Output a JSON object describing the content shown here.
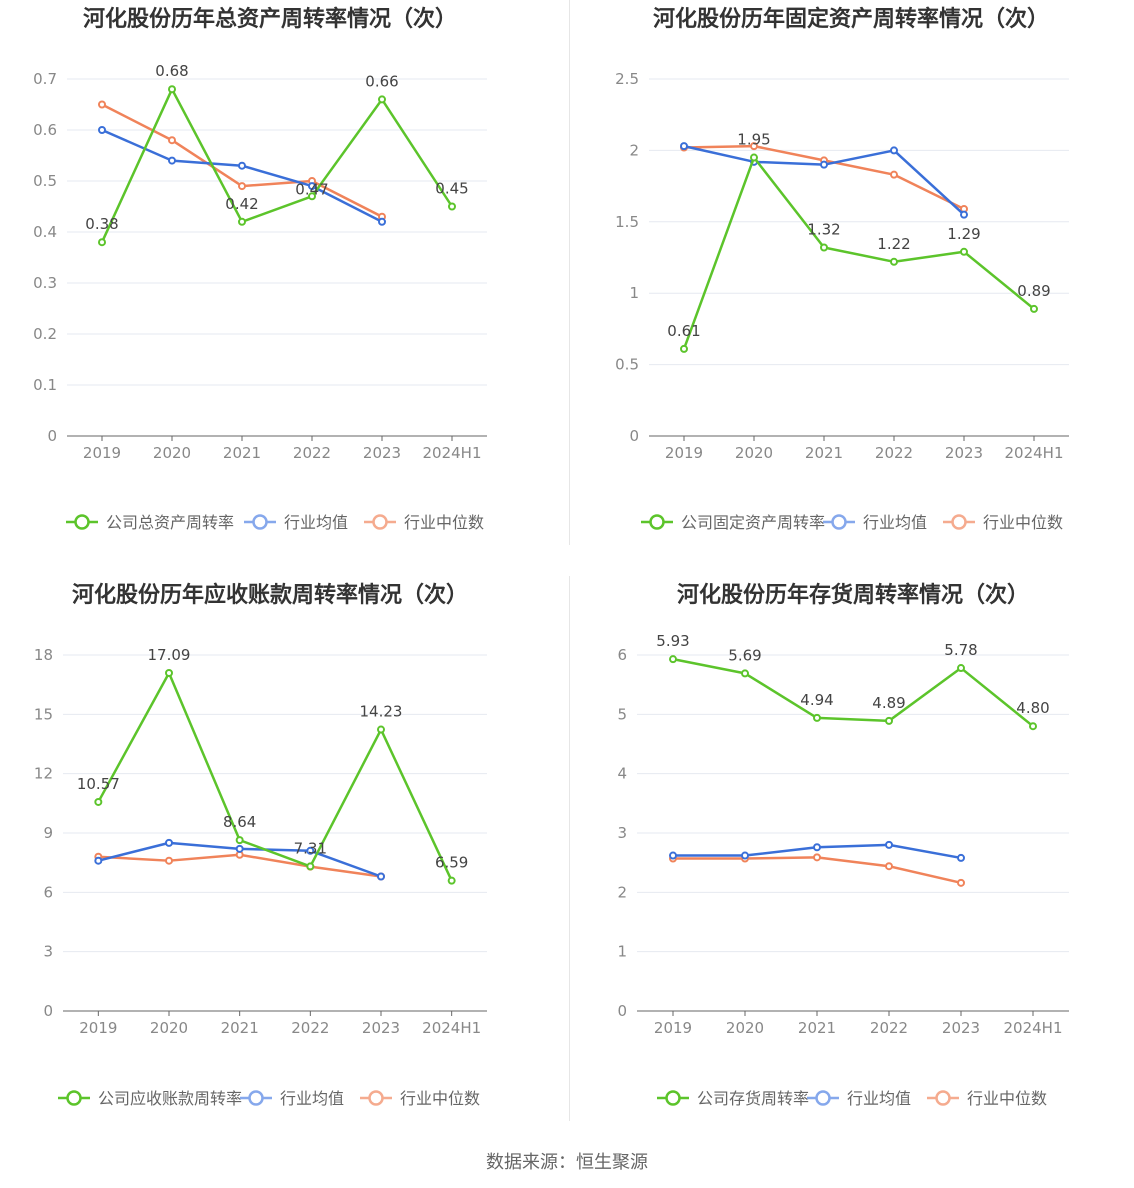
{
  "colors": {
    "company": "#5cc42b",
    "avg": "#3a6fd8",
    "median": "#f0835a",
    "legend_avg": "#86a8ec",
    "legend_median": "#f5ab8f",
    "grid": "#e6e9f0",
    "axis": "#666666"
  },
  "chart_data": [
    {
      "type": "line",
      "title": "河化股份历年总资产周转率情况（次）",
      "categories": [
        "2019",
        "2020",
        "2021",
        "2022",
        "2023",
        "2024H1"
      ],
      "ylim": [
        0,
        0.7
      ],
      "yticks": [
        "0",
        "0.1",
        "0.2",
        "0.3",
        "0.4",
        "0.5",
        "0.6",
        "0.7"
      ],
      "series": [
        {
          "name": "公司总资产周转率",
          "values": [
            0.38,
            0.68,
            0.42,
            0.47,
            0.66,
            0.45
          ],
          "labels": [
            "0.38",
            "0.68",
            "0.42",
            "0.47",
            "0.66",
            "0.45"
          ]
        },
        {
          "name": "行业均值",
          "values": [
            0.6,
            0.54,
            0.53,
            0.49,
            0.42,
            null
          ]
        },
        {
          "name": "行业中位数",
          "values": [
            0.65,
            0.58,
            0.49,
            0.5,
            0.43,
            null
          ]
        }
      ],
      "legend": "bottom",
      "grid": true
    },
    {
      "type": "line",
      "title": "河化股份历年固定资产周转率情况（次）",
      "categories": [
        "2019",
        "2020",
        "2021",
        "2022",
        "2023",
        "2024H1"
      ],
      "ylim": [
        0,
        2.5
      ],
      "yticks": [
        "0",
        "0.5",
        "1",
        "1.5",
        "2",
        "2.5"
      ],
      "series": [
        {
          "name": "公司固定资产周转率",
          "values": [
            0.61,
            1.95,
            1.32,
            1.22,
            1.29,
            0.89
          ],
          "labels": [
            "0.61",
            "1.95",
            "1.32",
            "1.22",
            "1.29",
            "0.89"
          ]
        },
        {
          "name": "行业均值",
          "values": [
            2.03,
            1.92,
            1.9,
            2.0,
            1.55,
            null
          ]
        },
        {
          "name": "行业中位数",
          "values": [
            2.02,
            2.03,
            1.93,
            1.83,
            1.59,
            null
          ]
        }
      ],
      "legend": "bottom",
      "grid": true
    },
    {
      "type": "line",
      "title": "河化股份历年应收账款周转率情况（次）",
      "categories": [
        "2019",
        "2020",
        "2021",
        "2022",
        "2023",
        "2024H1"
      ],
      "ylim": [
        0,
        18
      ],
      "yticks": [
        "0",
        "3",
        "6",
        "9",
        "12",
        "15",
        "18"
      ],
      "series": [
        {
          "name": "公司应收账款周转率",
          "values": [
            10.57,
            17.09,
            8.64,
            7.31,
            14.23,
            6.59
          ],
          "labels": [
            "10.57",
            "17.09",
            "8.64",
            "7.31",
            "14.23",
            "6.59"
          ]
        },
        {
          "name": "行业均值",
          "values": [
            7.6,
            8.5,
            8.2,
            8.1,
            6.8,
            null
          ]
        },
        {
          "name": "行业中位数",
          "values": [
            7.8,
            7.6,
            7.9,
            7.3,
            6.8,
            null
          ]
        }
      ],
      "legend": "bottom",
      "grid": true
    },
    {
      "type": "line",
      "title": "河化股份历年存货周转率情况（次）",
      "categories": [
        "2019",
        "2020",
        "2021",
        "2022",
        "2023",
        "2024H1"
      ],
      "ylim": [
        0,
        6
      ],
      "yticks": [
        "0",
        "1",
        "2",
        "3",
        "4",
        "5",
        "6"
      ],
      "series": [
        {
          "name": "公司存货周转率",
          "values": [
            5.93,
            5.69,
            4.94,
            4.89,
            5.78,
            4.8
          ],
          "labels": [
            "5.93",
            "5.69",
            "4.94",
            "4.89",
            "5.78",
            "4.80"
          ]
        },
        {
          "name": "行业均值",
          "values": [
            2.62,
            2.62,
            2.76,
            2.8,
            2.58,
            null
          ]
        },
        {
          "name": "行业中位数",
          "values": [
            2.57,
            2.57,
            2.59,
            2.44,
            2.16,
            null
          ]
        }
      ],
      "legend": "bottom",
      "grid": true
    }
  ],
  "footer": {
    "source": "数据来源：恒生聚源"
  }
}
